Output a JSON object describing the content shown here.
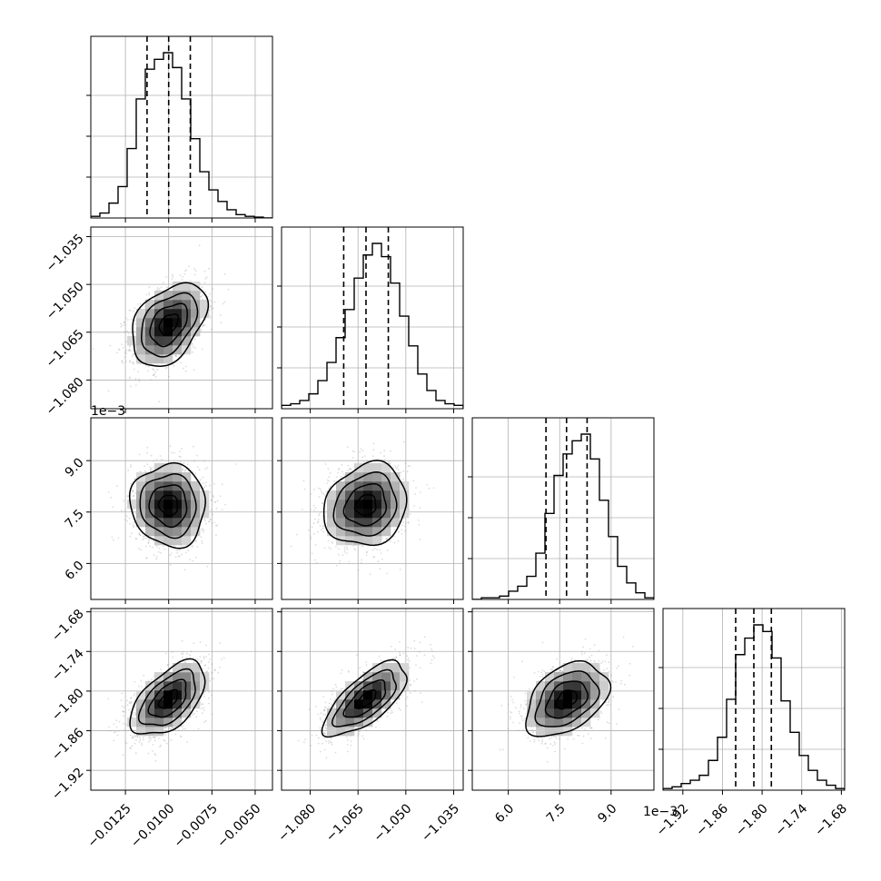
{
  "chart_data": {
    "type": "corner",
    "title": "",
    "grid": true,
    "colors": {
      "axes": "#000000",
      "grid": "#b0b0b0",
      "hist": "#000000",
      "scatter": "#9a9a9a",
      "contour": "#000000",
      "density_dark": "#000000"
    },
    "parameters": [
      {
        "range": [
          -0.0145,
          -0.004
        ],
        "ticks": [
          -0.0125,
          -0.01,
          -0.0075,
          -0.005
        ],
        "tick_labels": [
          "−0.0125",
          "−0.0100",
          "−0.0075",
          "−0.0050"
        ],
        "offset_text": "",
        "mean": -0.01,
        "sd": 0.00108,
        "quantiles": [
          -0.01125,
          -0.01,
          -0.00875
        ],
        "hist": [
          0.01,
          0.03,
          0.09,
          0.19,
          0.42,
          0.72,
          0.9,
          0.96,
          1.0,
          0.91,
          0.72,
          0.48,
          0.28,
          0.17,
          0.1,
          0.05,
          0.02,
          0.01,
          0.005,
          0.0
        ]
      },
      {
        "range": [
          -1.089,
          -1.032
        ],
        "ticks": [
          -1.08,
          -1.065,
          -1.05,
          -1.035
        ],
        "tick_labels": [
          "−1.080",
          "−1.065",
          "−1.050",
          "−1.035"
        ],
        "offset_text": "",
        "mean": -1.0625,
        "sd": 0.0065,
        "quantiles": [
          -1.0695,
          -1.0625,
          -1.0555
        ],
        "hist": [
          0.02,
          0.03,
          0.05,
          0.09,
          0.17,
          0.28,
          0.43,
          0.6,
          0.79,
          0.93,
          1.0,
          0.92,
          0.76,
          0.56,
          0.38,
          0.21,
          0.11,
          0.05,
          0.03,
          0.02
        ]
      },
      {
        "range": [
          4.95,
          10.25
        ],
        "ticks": [
          6.0,
          7.5,
          9.0
        ],
        "tick_labels": [
          "6.0",
          "7.5",
          "9.0"
        ],
        "offset_text": "1e−3",
        "mean": 7.7,
        "sd": 0.6,
        "quantiles": [
          7.1,
          7.7,
          8.3
        ],
        "hist": [
          0.0,
          0.01,
          0.01,
          0.02,
          0.05,
          0.08,
          0.14,
          0.28,
          0.52,
          0.75,
          0.88,
          0.96,
          1.0,
          0.85,
          0.6,
          0.38,
          0.2,
          0.1,
          0.04,
          0.01
        ]
      },
      {
        "range": [
          -1.95,
          -1.675
        ],
        "ticks": [
          -1.92,
          -1.86,
          -1.8,
          -1.74,
          -1.68
        ],
        "tick_labels": [
          "−1.92",
          "−1.86",
          "−1.80",
          "−1.74",
          "−1.68"
        ],
        "offset_text": "",
        "mean": -1.8125,
        "sd": 0.028,
        "quantiles": [
          -1.84,
          -1.8125,
          -1.786
        ],
        "hist": [
          0.01,
          0.02,
          0.04,
          0.06,
          0.09,
          0.18,
          0.32,
          0.55,
          0.82,
          0.92,
          1.0,
          0.96,
          0.8,
          0.54,
          0.35,
          0.21,
          0.12,
          0.06,
          0.03,
          0.01
        ]
      }
    ],
    "correlations": [
      [
        1.0,
        0.4,
        -0.05,
        0.55
      ],
      [
        0.4,
        1.0,
        0.15,
        0.7
      ],
      [
        -0.05,
        0.15,
        1.0,
        0.4
      ],
      [
        0.55,
        0.7,
        0.4,
        1.0
      ]
    ],
    "samples_per_panel": 1400,
    "contour_levels_sigma": [
      0.5,
      1.0,
      1.5,
      2.0
    ],
    "density_bins": 20
  }
}
